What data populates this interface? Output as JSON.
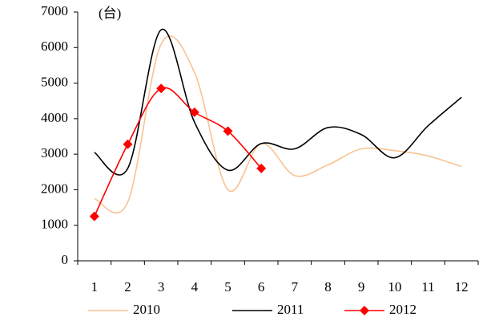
{
  "chart_data": {
    "type": "line",
    "unit_label": "(台)",
    "categories": [
      "1",
      "2",
      "3",
      "4",
      "5",
      "6",
      "7",
      "8",
      "9",
      "10",
      "11",
      "12"
    ],
    "series": [
      {
        "name": "2010",
        "color": "#f8c392",
        "values": [
          1750,
          1650,
          6100,
          5300,
          2000,
          3300,
          2400,
          2700,
          3150,
          3100,
          2950,
          2650
        ]
      },
      {
        "name": "2011",
        "color": "#000000",
        "values": [
          3050,
          2600,
          6500,
          3900,
          2550,
          3300,
          3150,
          3750,
          3550,
          2900,
          3800,
          4600
        ]
      },
      {
        "name": "2012",
        "color": "#ff0000",
        "marker": "diamond",
        "values": [
          1250,
          3280,
          4850,
          4180,
          3650,
          2600,
          null,
          null,
          null,
          null,
          null,
          null
        ]
      }
    ],
    "ylim": [
      0,
      7000
    ],
    "yticks": [
      0,
      1000,
      2000,
      3000,
      4000,
      5000,
      6000,
      7000
    ],
    "grid": false,
    "legend": "bottom"
  }
}
